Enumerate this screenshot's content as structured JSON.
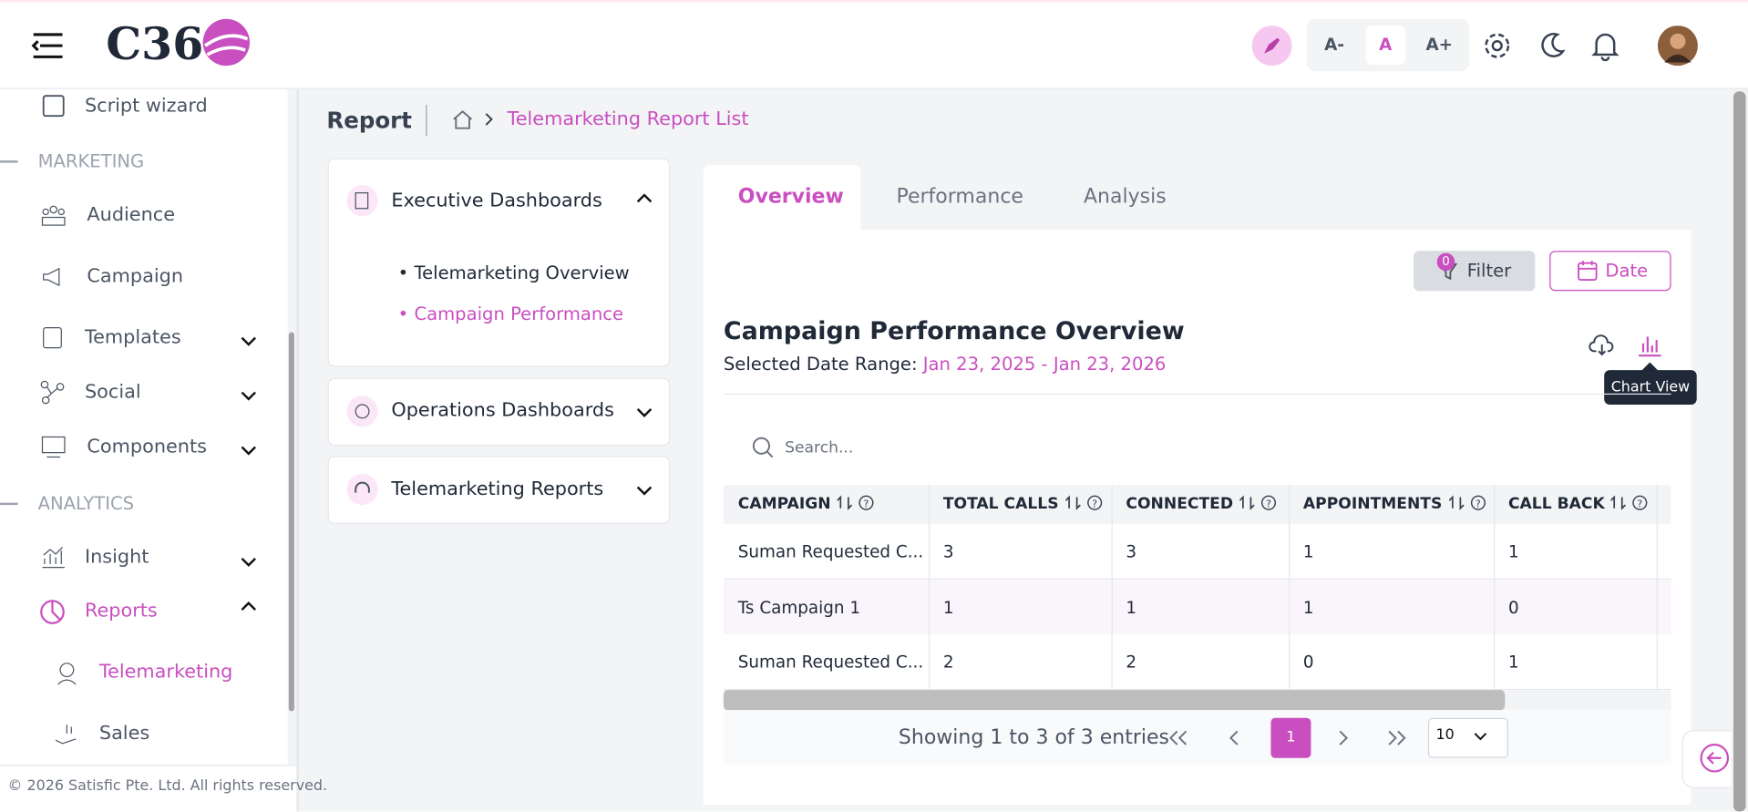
{
  "header": {
    "logo": "C36",
    "font_sizes": [
      "A-",
      "A",
      "A+"
    ]
  },
  "sidebar": {
    "items": [
      {
        "label": "Script wizard"
      },
      {
        "label": "MARKETING"
      },
      {
        "label": "Audience"
      },
      {
        "label": "Campaign"
      },
      {
        "label": "Templates"
      },
      {
        "label": "Social"
      },
      {
        "label": "Components"
      },
      {
        "label": "ANALYTICS"
      },
      {
        "label": "Insight"
      },
      {
        "label": "Reports"
      },
      {
        "label": "Telemarketing"
      },
      {
        "label": "Sales"
      }
    ],
    "footer": "© 2026 Satisfic Pte. Ltd. All rights reserved."
  },
  "breadcrumb": {
    "page": "Report",
    "current": "Telemarketing Report List"
  },
  "panels": [
    {
      "title": "Executive Dashboards",
      "items": [
        "Telemarketing Overview",
        "Campaign Performance"
      ]
    },
    {
      "title": "Operations Dashboards"
    },
    {
      "title": "Telemarketing Reports"
    }
  ],
  "tabs": [
    "Overview",
    "Performance",
    "Analysis"
  ],
  "toolbar": {
    "filter": "Filter",
    "filter_count": 0,
    "date": "Date"
  },
  "report": {
    "title": "Campaign Performance Overview",
    "date_range_label": "Selected Date Range:",
    "date_range": "Jan 23, 2025 - Jan 23, 2026",
    "tooltip": "Chart View",
    "search_placeholder": "Search..."
  },
  "table": {
    "columns": [
      "CAMPAIGN",
      "TOTAL CALLS",
      "CONNECTED",
      "APPOINTMENTS",
      "CALL BACK"
    ],
    "rows": [
      [
        "Suman Requested C...",
        3,
        3,
        1,
        1
      ],
      [
        "Ts Campaign 1",
        1,
        1,
        1,
        0
      ],
      [
        "Suman Requested C...",
        2,
        2,
        0,
        1
      ]
    ]
  },
  "pagination": {
    "summary": "Showing 1 to 3 of 3 entries",
    "page": 1,
    "per_page": 10
  }
}
